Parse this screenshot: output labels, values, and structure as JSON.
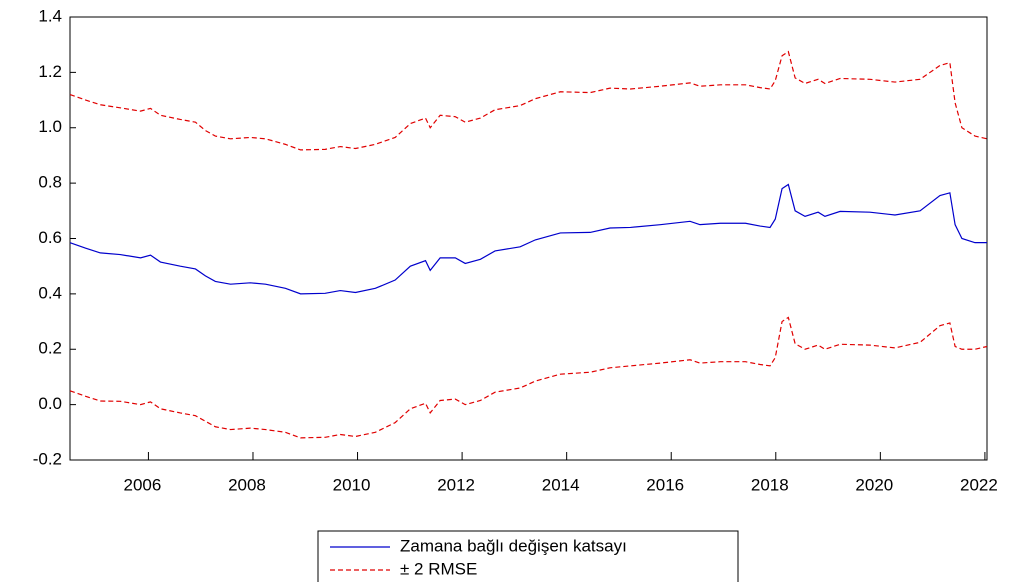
{
  "chart_data": {
    "type": "line",
    "x": [
      2004.5,
      2004.8,
      2005.08,
      2005.46,
      2005.85,
      2006.04,
      2006.23,
      2006.61,
      2006.9,
      2007.09,
      2007.28,
      2007.57,
      2007.95,
      2008.24,
      2008.62,
      2008.91,
      2009.38,
      2009.67,
      2009.96,
      2010.34,
      2010.72,
      2011.01,
      2011.3,
      2011.39,
      2011.58,
      2011.87,
      2012.06,
      2012.35,
      2012.63,
      2013.11,
      2013.4,
      2013.88,
      2014.45,
      2014.83,
      2015.22,
      2015.79,
      2016.36,
      2016.55,
      2016.94,
      2017.42,
      2017.7,
      2017.89,
      2017.99,
      2018.12,
      2018.24,
      2018.37,
      2018.56,
      2018.81,
      2018.94,
      2019.23,
      2019.8,
      2020.28,
      2020.76,
      2021.14,
      2021.33,
      2021.43,
      2021.56,
      2021.81,
      2022.04
    ],
    "series": [
      {
        "name": "Zamana bağlı değişen katsayı",
        "color": "#0000cc",
        "values": [
          0.585,
          0.565,
          0.548,
          0.542,
          0.53,
          0.54,
          0.515,
          0.5,
          0.49,
          0.465,
          0.445,
          0.435,
          0.44,
          0.435,
          0.42,
          0.4,
          0.402,
          0.412,
          0.405,
          0.42,
          0.45,
          0.5,
          0.52,
          0.485,
          0.53,
          0.53,
          0.51,
          0.525,
          0.555,
          0.57,
          0.595,
          0.62,
          0.622,
          0.638,
          0.64,
          0.65,
          0.662,
          0.65,
          0.655,
          0.655,
          0.645,
          0.64,
          0.67,
          0.78,
          0.795,
          0.7,
          0.68,
          0.695,
          0.68,
          0.698,
          0.695,
          0.685,
          0.7,
          0.755,
          0.765,
          0.65,
          0.6,
          0.585,
          0.585
        ]
      }
    ],
    "band": {
      "name": "± 2 RMSE",
      "color": "#e00000",
      "dashed": true,
      "upper": [
        1.12,
        1.1,
        1.083,
        1.072,
        1.06,
        1.07,
        1.045,
        1.03,
        1.02,
        0.99,
        0.97,
        0.96,
        0.965,
        0.96,
        0.94,
        0.92,
        0.922,
        0.932,
        0.925,
        0.94,
        0.965,
        1.015,
        1.035,
        1.0,
        1.045,
        1.04,
        1.02,
        1.035,
        1.065,
        1.08,
        1.105,
        1.13,
        1.127,
        1.143,
        1.14,
        1.15,
        1.162,
        1.15,
        1.155,
        1.155,
        1.145,
        1.14,
        1.17,
        1.26,
        1.275,
        1.18,
        1.16,
        1.175,
        1.16,
        1.178,
        1.175,
        1.165,
        1.175,
        1.225,
        1.235,
        1.09,
        1.0,
        0.97,
        0.96
      ],
      "lower": [
        0.05,
        0.03,
        0.013,
        0.012,
        0.0,
        0.01,
        -0.015,
        -0.03,
        -0.04,
        -0.06,
        -0.08,
        -0.09,
        -0.085,
        -0.09,
        -0.1,
        -0.12,
        -0.118,
        -0.108,
        -0.115,
        -0.1,
        -0.065,
        -0.015,
        0.005,
        -0.03,
        0.015,
        0.02,
        0.0,
        0.015,
        0.045,
        0.06,
        0.085,
        0.11,
        0.117,
        0.133,
        0.14,
        0.15,
        0.162,
        0.15,
        0.155,
        0.155,
        0.145,
        0.14,
        0.17,
        0.3,
        0.315,
        0.22,
        0.2,
        0.215,
        0.2,
        0.218,
        0.215,
        0.205,
        0.225,
        0.285,
        0.295,
        0.21,
        0.2,
        0.2,
        0.21
      ]
    },
    "xlim": [
      2004.5,
      2022.04
    ],
    "xticks": [
      2006,
      2008,
      2010,
      2012,
      2014,
      2016,
      2018,
      2020,
      2022
    ],
    "ylim": [
      -0.2,
      1.4
    ],
    "yticks": [
      -0.2,
      {
        "value": 0,
        "label": "0.0"
      },
      0.2,
      0.4,
      0.6,
      0.8,
      {
        "value": 1,
        "label": "1.0"
      },
      1.2,
      1.4
    ],
    "grid": false
  }
}
